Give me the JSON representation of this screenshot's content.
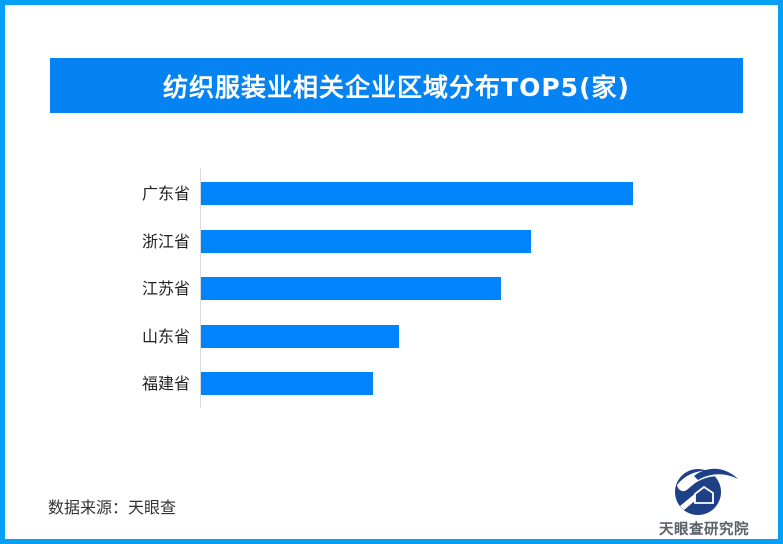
{
  "page": {
    "border_color": "#04A0F6",
    "background_color": "#FFFFFF"
  },
  "header": {
    "title": "纺织服装业相关企业区域分布TOP5(家)",
    "banner_color": "#0583F2",
    "title_color": "#FFFFFF"
  },
  "chart_data": {
    "type": "bar",
    "orientation": "horizontal",
    "title": "纺织服装业相关企业区域分布TOP5(家)",
    "unit": "家",
    "categories": [
      "广东省",
      "浙江省",
      "江苏省",
      "山东省",
      "福建省"
    ],
    "values": [
      100,
      76.4,
      69.4,
      45.8,
      39.8
    ],
    "values_are_relative": true,
    "value_labels_shown": false,
    "xlabel": "",
    "ylabel": "",
    "grid": false,
    "legend": false,
    "bar_color": "#0084FB",
    "axis_line_color": "#D9D9D9",
    "label_color": "#222222"
  },
  "footer": {
    "source": "数据来源：天眼查",
    "logo_text": "天眼查研究院",
    "logo_color": "#1E4087",
    "logo_text_color": "#5A6167"
  }
}
